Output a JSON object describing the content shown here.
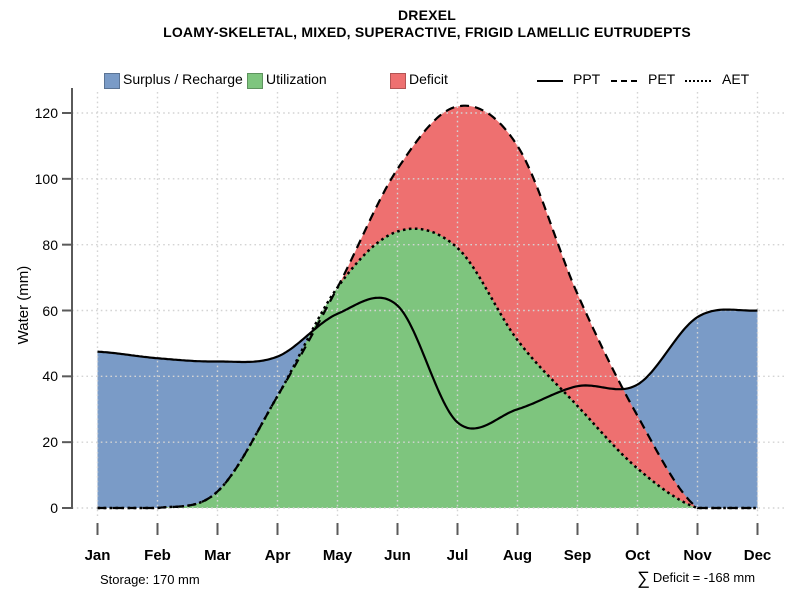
{
  "title": "DREXEL",
  "subtitle": "LOAMY-SKELETAL, MIXED, SUPERACTIVE, FRIGID LAMELLIC EUTRUDEPTS",
  "ylabel": "Water (mm)",
  "annotations": {
    "storage": "Storage: 170 mm",
    "deficit_prefix": "∑",
    "deficit": "Deficit = -168 mm"
  },
  "legend": {
    "fills": [
      {
        "label": "Surplus / Recharge",
        "color": "#7A9BC7"
      },
      {
        "label": "Utilization",
        "color": "#7EC57E"
      },
      {
        "label": "Deficit",
        "color": "#EE7070"
      }
    ],
    "lines": [
      {
        "label": "PPT",
        "style": "solid"
      },
      {
        "label": "PET",
        "style": "dashed"
      },
      {
        "label": "AET",
        "style": "dotted"
      }
    ]
  },
  "colors": {
    "surplus": "#7A9BC7",
    "utilization": "#7EC57E",
    "deficit": "#EE7070",
    "line": "#000000",
    "axis": "#5a5a5a",
    "grid": "#d4d4d4"
  },
  "chart_data": {
    "type": "area",
    "title": "DREXEL",
    "subtitle": "LOAMY-SKELETAL, MIXED, SUPERACTIVE, FRIGID LAMELLIC EUTRUDEPTS",
    "ylabel": "Water (mm)",
    "xlabel": "",
    "categories": [
      "Jan",
      "Feb",
      "Mar",
      "Apr",
      "May",
      "Jun",
      "Jul",
      "Aug",
      "Sep",
      "Oct",
      "Nov",
      "Dec"
    ],
    "yticks": [
      0,
      20,
      40,
      60,
      80,
      100,
      120
    ],
    "ylim": [
      0,
      127
    ],
    "grid": true,
    "legend_position": "top",
    "series": [
      {
        "name": "PPT",
        "style": "solid",
        "values": [
          47.5,
          45.5,
          44.5,
          46,
          59,
          61.5,
          26,
          30,
          37,
          37.5,
          58,
          60
        ]
      },
      {
        "name": "PET",
        "style": "dashed",
        "values": [
          0,
          0,
          5,
          34,
          67,
          103,
          122,
          110,
          65,
          28,
          0,
          0
        ]
      },
      {
        "name": "AET",
        "style": "dotted",
        "values": [
          0,
          0,
          5,
          34,
          67,
          84,
          79,
          51,
          31,
          12,
          0,
          0
        ]
      }
    ],
    "areas": [
      {
        "name": "Surplus / Recharge",
        "between": [
          "PET",
          "PPT"
        ],
        "where": "PPT > PET"
      },
      {
        "name": "Utilization",
        "between": [
          "0",
          "AET"
        ]
      },
      {
        "name": "Deficit",
        "between": [
          "AET",
          "PET"
        ]
      }
    ],
    "storage_mm": 170,
    "sum_deficit_mm": -168
  }
}
